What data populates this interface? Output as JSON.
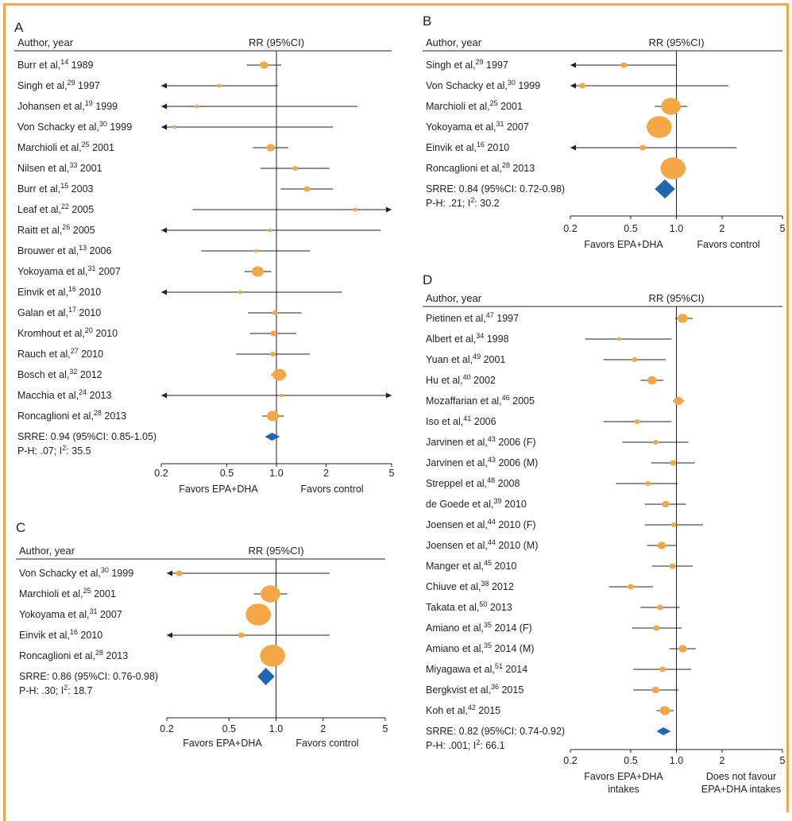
{
  "colors": {
    "frame": "#f5a645",
    "point": "#f5a645",
    "diamond": "#1f68b1",
    "line": "#222222"
  },
  "chart_data": [
    {
      "type": "forest",
      "panel": "A",
      "header_left": "Author, year",
      "header_right": "RR (95%CI)",
      "xscale": "log",
      "xlim": [
        0.2,
        5
      ],
      "ticks": [
        0.2,
        0.5,
        1.0,
        2,
        5
      ],
      "tick_labels": [
        "0.2",
        "0.5",
        "1.0",
        "2",
        "5"
      ],
      "favors_left": [
        "Favors EPA+DHA"
      ],
      "favors_right": [
        "Favors control"
      ],
      "studies": [
        {
          "name": "Burr et al,",
          "ref": "14",
          "year": "1989",
          "rr": 0.84,
          "lo": 0.66,
          "hi": 1.07,
          "w": 3
        },
        {
          "name": "Singh et al,",
          "ref": "29",
          "year": "1997",
          "rr": 0.45,
          "lo": 0.2,
          "hi": 1.02,
          "w": 1
        },
        {
          "name": "Johansen et al,",
          "ref": "19",
          "year": "1999",
          "rr": 0.33,
          "lo": 0.2,
          "hi": 3.1,
          "w": 1
        },
        {
          "name": "Von Schacky et al,",
          "ref": "30",
          "year": "1999",
          "rr": 0.24,
          "lo": 0.2,
          "hi": 2.2,
          "w": 1
        },
        {
          "name": "Marchioli et al,",
          "ref": "25",
          "year": "2001",
          "rr": 0.92,
          "lo": 0.72,
          "hi": 1.18,
          "w": 3
        },
        {
          "name": "Nilsen et al,",
          "ref": "33",
          "year": "2001",
          "rr": 1.3,
          "lo": 0.8,
          "hi": 2.1,
          "w": 1.5
        },
        {
          "name": "Burr et al,",
          "ref": "15",
          "year": "2003",
          "rr": 1.53,
          "lo": 1.06,
          "hi": 2.2,
          "w": 2
        },
        {
          "name": "Leaf et al,",
          "ref": "22",
          "year": "2005",
          "rr": 3.0,
          "lo": 0.31,
          "hi": 5.0,
          "w": 1
        },
        {
          "name": "Raitt et al,",
          "ref": "26",
          "year": "2005",
          "rr": 0.91,
          "lo": 0.2,
          "hi": 4.3,
          "w": 1
        },
        {
          "name": "Brouwer et al,",
          "ref": "13",
          "year": "2006",
          "rr": 0.75,
          "lo": 0.35,
          "hi": 1.6,
          "w": 1
        },
        {
          "name": "Yokoyama et al,",
          "ref": "31",
          "year": "2007",
          "rr": 0.77,
          "lo": 0.64,
          "hi": 0.93,
          "w": 5
        },
        {
          "name": "Einvik et al,",
          "ref": "16",
          "year": "2010",
          "rr": 0.6,
          "lo": 0.2,
          "hi": 2.5,
          "w": 1
        },
        {
          "name": "Galan et al,",
          "ref": "17",
          "year": "2010",
          "rr": 0.98,
          "lo": 0.67,
          "hi": 1.42,
          "w": 1.5
        },
        {
          "name": "Kromhout et al,",
          "ref": "20",
          "year": "2010",
          "rr": 0.96,
          "lo": 0.69,
          "hi": 1.32,
          "w": 2
        },
        {
          "name": "Rauch et al,",
          "ref": "27",
          "year": "2010",
          "rr": 0.95,
          "lo": 0.57,
          "hi": 1.59,
          "w": 1.5
        },
        {
          "name": "Bosch et al,",
          "ref": "32",
          "year": "2012",
          "rr": 1.04,
          "lo": 0.93,
          "hi": 1.15,
          "w": 6
        },
        {
          "name": "Macchia et al,",
          "ref": "24",
          "year": "2013",
          "rr": 1.07,
          "lo": 0.2,
          "hi": 5.0,
          "w": 1
        },
        {
          "name": "Roncaglioni et al,",
          "ref": "28",
          "year": "2013",
          "rr": 0.95,
          "lo": 0.82,
          "hi": 1.11,
          "w": 5
        }
      ],
      "arrows_left": [
        1,
        2,
        3,
        8,
        11,
        16
      ],
      "arrows_right": [
        7,
        16
      ],
      "summary": {
        "label": "SRRE: 0.94 (95%CI: 0.85-1.05)",
        "rr": 0.94,
        "lo": 0.85,
        "hi": 1.05
      },
      "heterogeneity": {
        "pre": "P-H: .07; I",
        "sup": "2",
        "post": ": 35.5"
      }
    },
    {
      "type": "forest",
      "panel": "B",
      "header_left": "Author, year",
      "header_right": "RR (95%CI)",
      "xscale": "log",
      "xlim": [
        0.2,
        5
      ],
      "ticks": [
        0.2,
        0.5,
        1.0,
        2,
        5
      ],
      "tick_labels": [
        "0.2",
        "0.5",
        "1.0",
        "2",
        "5"
      ],
      "favors_left": [
        "Favors EPA+DHA"
      ],
      "favors_right": [
        "Favors control"
      ],
      "studies": [
        {
          "name": "Singh et al,",
          "ref": "29",
          "year": "1997",
          "rr": 0.45,
          "lo": 0.2,
          "hi": 1.0,
          "w": 2
        },
        {
          "name": "Von Schacky et al,",
          "ref": "30",
          "year": "1999",
          "rr": 0.24,
          "lo": 0.2,
          "hi": 2.2,
          "w": 2
        },
        {
          "name": "Marchioli et al,",
          "ref": "25",
          "year": "2001",
          "rr": 0.92,
          "lo": 0.72,
          "hi": 1.18,
          "w": 10
        },
        {
          "name": "Yokoyama et al,",
          "ref": "31",
          "year": "2007",
          "rr": 0.77,
          "lo": 0.64,
          "hi": 0.93,
          "w": 14
        },
        {
          "name": "Einvik et al,",
          "ref": "16",
          "year": "2010",
          "rr": 0.6,
          "lo": 0.2,
          "hi": 2.5,
          "w": 2
        },
        {
          "name": "Roncaglioni et al,",
          "ref": "28",
          "year": "2013",
          "rr": 0.95,
          "lo": 0.82,
          "hi": 1.11,
          "w": 14
        }
      ],
      "arrows_left": [
        0,
        1,
        4
      ],
      "arrows_right": [],
      "summary": {
        "label": "SRRE: 0.84 (95%CI: 0.72-0.98)",
        "rr": 0.84,
        "lo": 0.72,
        "hi": 0.98
      },
      "heterogeneity": {
        "pre": "P-H: .21; I",
        "sup": "2",
        "post": ": 30.2"
      }
    },
    {
      "type": "forest",
      "panel": "C",
      "header_left": "Author, year",
      "header_right": "RR (95%CI)",
      "xscale": "log",
      "xlim": [
        0.2,
        5
      ],
      "ticks": [
        0.2,
        0.5,
        1.0,
        2,
        5
      ],
      "tick_labels": [
        "0.2",
        "0.5",
        "1.0",
        "2",
        "5"
      ],
      "favors_left": [
        "Favors EPA+DHA"
      ],
      "favors_right": [
        "Favors control"
      ],
      "studies": [
        {
          "name": "Von Schacky et al,",
          "ref": "30",
          "year": "1999",
          "rr": 0.24,
          "lo": 0.2,
          "hi": 2.2,
          "w": 2
        },
        {
          "name": "Marchioli et al,",
          "ref": "25",
          "year": "2001",
          "rr": 0.92,
          "lo": 0.72,
          "hi": 1.18,
          "w": 10
        },
        {
          "name": "Yokoyama et al,",
          "ref": "31",
          "year": "2007",
          "rr": 0.77,
          "lo": 0.64,
          "hi": 0.93,
          "w": 14
        },
        {
          "name": "Einvik et al,",
          "ref": "16",
          "year": "2010",
          "rr": 0.6,
          "lo": 0.2,
          "hi": 2.2,
          "w": 2
        },
        {
          "name": "Roncaglioni et al,",
          "ref": "28",
          "year": "2013",
          "rr": 0.95,
          "lo": 0.82,
          "hi": 1.11,
          "w": 14
        }
      ],
      "arrows_left": [
        0,
        3
      ],
      "arrows_right": [],
      "summary": {
        "label": "SRRE: 0.86 (95%CI: 0.76-0.98)",
        "rr": 0.86,
        "lo": 0.76,
        "hi": 0.98
      },
      "heterogeneity": {
        "pre": "P-H: .30; I",
        "sup": "2",
        "post": ": 18.7"
      }
    },
    {
      "type": "forest",
      "panel": "D",
      "header_left": "Author, year",
      "header_right": "RR (95%CI)",
      "xscale": "log",
      "xlim": [
        0.2,
        5
      ],
      "ticks": [
        0.2,
        0.5,
        1.0,
        2,
        5
      ],
      "tick_labels": [
        "0.2",
        "0.5",
        "1.0",
        "2",
        "5"
      ],
      "favors_left": [
        "Favors EPA+DHA",
        "intakes"
      ],
      "favors_right": [
        "Does not favour",
        "EPA+DHA intakes"
      ],
      "studies": [
        {
          "name": "Pietinen et al,",
          "ref": "47",
          "year": "1997",
          "rr": 1.1,
          "lo": 0.98,
          "hi": 1.28,
          "w": 4
        },
        {
          "name": "Albert et al,",
          "ref": "34",
          "year": "1998",
          "rr": 0.42,
          "lo": 0.25,
          "hi": 0.93,
          "w": 1
        },
        {
          "name": "Yuan et al,",
          "ref": "49",
          "year": "2001",
          "rr": 0.53,
          "lo": 0.33,
          "hi": 0.85,
          "w": 1.5
        },
        {
          "name": "Hu et al,",
          "ref": "40",
          "year": "2002",
          "rr": 0.69,
          "lo": 0.58,
          "hi": 0.82,
          "w": 3.5
        },
        {
          "name": "Mozaffarian et al,",
          "ref": "46",
          "year": "2005",
          "rr": 1.03,
          "lo": 0.95,
          "hi": 1.12,
          "w": 3.5
        },
        {
          "name": "Iso et al,",
          "ref": "41",
          "year": "2006",
          "rr": 0.55,
          "lo": 0.33,
          "hi": 0.93,
          "w": 1.5
        },
        {
          "name": "Jarvinen et al,",
          "ref": "43",
          "year": "2006 (F)",
          "rr": 0.73,
          "lo": 0.44,
          "hi": 1.2,
          "w": 1.5
        },
        {
          "name": "Jarvinen et al,",
          "ref": "43",
          "year": "2006 (M)",
          "rr": 0.95,
          "lo": 0.68,
          "hi": 1.32,
          "w": 2
        },
        {
          "name": "Streppel et al,",
          "ref": "48",
          "year": "2008",
          "rr": 0.65,
          "lo": 0.4,
          "hi": 1.02,
          "w": 1.5
        },
        {
          "name": "de Goede et al,",
          "ref": "39",
          "year": "2010",
          "rr": 0.85,
          "lo": 0.62,
          "hi": 1.16,
          "w": 2.5
        },
        {
          "name": "Joensen et al,",
          "ref": "44",
          "year": "2010 (F)",
          "rr": 0.96,
          "lo": 0.62,
          "hi": 1.5,
          "w": 1.5
        },
        {
          "name": "Joensen et al,",
          "ref": "44",
          "year": "2010 (M)",
          "rr": 0.8,
          "lo": 0.64,
          "hi": 1.0,
          "w": 3
        },
        {
          "name": "Manger et al,",
          "ref": "45",
          "year": "2010",
          "rr": 0.94,
          "lo": 0.69,
          "hi": 1.28,
          "w": 2
        },
        {
          "name": "Chiuve et al,",
          "ref": "38",
          "year": "2012",
          "rr": 0.5,
          "lo": 0.36,
          "hi": 0.7,
          "w": 2
        },
        {
          "name": "Takata et al,",
          "ref": "50",
          "year": "2013",
          "rr": 0.78,
          "lo": 0.58,
          "hi": 1.05,
          "w": 2
        },
        {
          "name": "Amiano et al,",
          "ref": "35",
          "year": "2014 (F)",
          "rr": 0.74,
          "lo": 0.51,
          "hi": 1.08,
          "w": 2
        },
        {
          "name": "Amiano et al,",
          "ref": "35",
          "year": "2014 (M)",
          "rr": 1.1,
          "lo": 0.9,
          "hi": 1.34,
          "w": 3
        },
        {
          "name": "Miyagawa et al,",
          "ref": "51",
          "year": "2014",
          "rr": 0.81,
          "lo": 0.52,
          "hi": 1.25,
          "w": 2
        },
        {
          "name": "Bergkvist et al,",
          "ref": "36",
          "year": "2015",
          "rr": 0.73,
          "lo": 0.52,
          "hi": 1.03,
          "w": 2.5
        },
        {
          "name": "Koh et al,",
          "ref": "42",
          "year": "2015",
          "rr": 0.84,
          "lo": 0.74,
          "hi": 0.96,
          "w": 4
        }
      ],
      "arrows_left": [],
      "arrows_right": [],
      "summary": {
        "label": "SRRE: 0.82 (95%CI: 0.74-0.92)",
        "rr": 0.82,
        "lo": 0.74,
        "hi": 0.92
      },
      "heterogeneity": {
        "pre": "P-H: .001; I",
        "sup": "2",
        "post": ": 66.1"
      }
    }
  ]
}
